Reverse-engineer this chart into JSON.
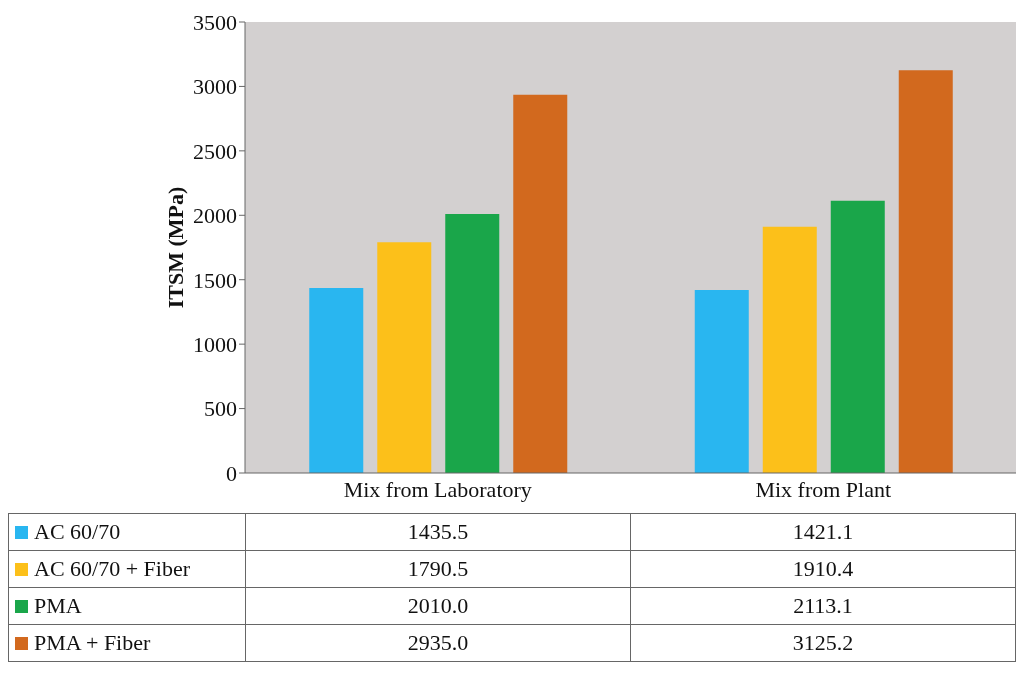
{
  "chart_data": {
    "type": "bar",
    "ylabel": "ITSM (MPa)",
    "categories": [
      "Mix from Laboratory",
      "Mix from Plant"
    ],
    "series": [
      {
        "name": "AC 60/70",
        "color": "#29b6f0",
        "values": [
          1435.5,
          1421.1
        ],
        "value_labels": [
          "1435.5",
          "1421.1"
        ]
      },
      {
        "name": "AC 60/70 + Fiber",
        "color": "#fcc01a",
        "values": [
          1790.5,
          1910.4
        ],
        "value_labels": [
          "1790.5",
          "1910.4"
        ]
      },
      {
        "name": "PMA",
        "color": "#1aa64a",
        "values": [
          2010.0,
          2113.1
        ],
        "value_labels": [
          "2010.0",
          "2113.1"
        ]
      },
      {
        "name": "PMA + Fiber",
        "color": "#d2691e",
        "values": [
          2935.0,
          3125.2
        ],
        "value_labels": [
          "2935.0",
          "3125.2"
        ]
      }
    ],
    "ylim": [
      0,
      3500
    ],
    "yticks": [
      0,
      500,
      1000,
      1500,
      2000,
      2500,
      3000,
      3500
    ],
    "grid": false,
    "legend": "bottom"
  }
}
